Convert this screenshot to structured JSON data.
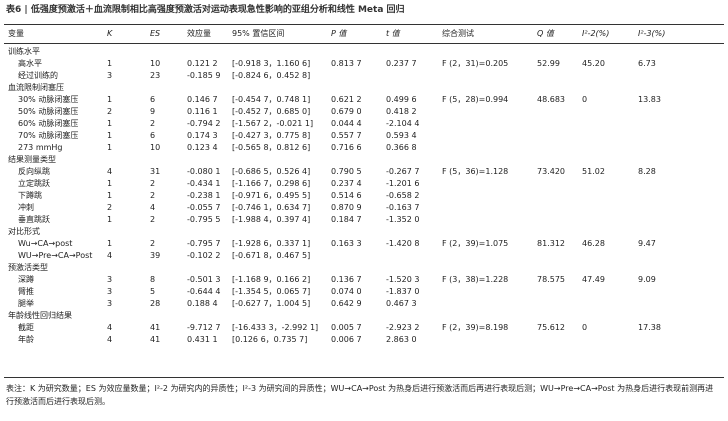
{
  "title": "表6 | 低强度预激活＋血流限制相比高强度预激活对运动表现急性影响的亚组分析和线性 Meta 回归",
  "table": {
    "header": [
      "变量",
      "K",
      "ES",
      "效应量",
      "95% 置信区间",
      "P 值",
      "t 值",
      "综合测试",
      "Q 值",
      "I²-2(%)",
      "I²-3(%)"
    ],
    "rows": [
      [
        "训练水平"
      ],
      [
        "高水平",
        "1",
        "10",
        "0.121 2",
        "[-0.918 3，1.160 6]",
        "0.813 7",
        "0.237 7",
        "F (2，31)=0.205",
        "52.99",
        "45.20",
        "6.73"
      ],
      [
        "经过训练的",
        "3",
        "23",
        "-0.185 9",
        "[-0.824 6，0.452 8]"
      ],
      [
        "血流限制闭塞压"
      ],
      [
        "30% 动脉闭塞压",
        "1",
        "6",
        "0.146 7",
        "[-0.454 7，0.748 1]",
        "0.621 2",
        "0.499 6",
        "F (5，28)=0.994",
        "48.683",
        "0",
        "13.83"
      ],
      [
        "50% 动脉闭塞压",
        "2",
        "9",
        "0.116 1",
        "[-0.452 7，0.685 0]",
        "0.679 0",
        "0.418 2"
      ],
      [
        "60% 动脉闭塞压",
        "1",
        "2",
        "-0.794 2",
        "[-1.567 2，-0.021 1]",
        "0.044 4",
        "-2.104 4"
      ],
      [
        "70% 动脉闭塞压",
        "1",
        "6",
        "0.174 3",
        "[-0.427 3，0.775 8]",
        "0.557 7",
        "0.593 4"
      ],
      [
        "273 mmHg",
        "1",
        "10",
        "0.123 4",
        "[-0.565 8，0.812 6]",
        "0.716 6",
        "0.366 8"
      ],
      [
        "结果测量类型"
      ],
      [
        "反向纵跳",
        "4",
        "31",
        "-0.080 1",
        "[-0.686 5，0.526 4]",
        "0.790 5",
        "-0.267 7",
        "F (5，36)=1.128",
        "73.420",
        "51.02",
        "8.28"
      ],
      [
        "立定跳跃",
        "1",
        "2",
        "-0.434 1",
        "[-1.166 7，0.298 6]",
        "0.237 4",
        "-1.201 6"
      ],
      [
        "下蹲跳",
        "1",
        "2",
        "-0.238 1",
        "[-0.971 6，0.495 5]",
        "0.514 6",
        "-0.658 2"
      ],
      [
        "冲刺",
        "2",
        "4",
        "-0.055 7",
        "[-0.746 1，0.634 7]",
        "0.870 9",
        "-0.163 7"
      ],
      [
        "垂直跳跃",
        "1",
        "2",
        "-0.795 5",
        "[-1.988 4，0.397 4]",
        "0.184 7",
        "-1.352 0"
      ],
      [
        "对比形式"
      ],
      [
        "Wu→CA→post",
        "1",
        "2",
        "-0.795 7",
        "[-1.928 6，0.337 1]",
        "0.163 3",
        "-1.420 8",
        "F (2，39)=1.075",
        "81.312",
        "46.28",
        "9.47"
      ],
      [
        "WU→Pre→CA→Post",
        "4",
        "39",
        "-0.102 2",
        "[-0.671 8，0.467 5]"
      ],
      [
        "预激活类型"
      ],
      [
        "深蹲",
        "3",
        "8",
        "-0.501 3",
        "[-1.168 9，0.166 2]",
        "0.136 7",
        "-1.520 3",
        "F (3，38)=1.228",
        "78.575",
        "47.49",
        "9.09"
      ],
      [
        "臂推",
        "3",
        "5",
        "-0.644 4",
        "[-1.354 5，0.065 7]",
        "0.074 0",
        "-1.837 0"
      ],
      [
        "腿举",
        "3",
        "28",
        "0.188 4",
        "[-0.627 7，1.004 5]",
        "0.642 9",
        "0.467 3"
      ],
      [
        "年龄线性回归结果"
      ],
      [
        "截距",
        "4",
        "41",
        "-9.712 7",
        "[-16.433 3，-2.992 1]",
        "0.005 7",
        "-2.923 2",
        "F (2，39)=8.198",
        "75.612",
        "0",
        "17.38"
      ],
      [
        "年龄",
        "4",
        "41",
        "0.431 1",
        "[0.126 6，0.735 7]",
        "0.006 7",
        "2.863 0"
      ]
    ]
  },
  "note": "表注：K 为研究数量；ES 为效应量数量；I²-2 为研究内的异质性；I²-3 为研究间的异质性；WU→CA→Post 为热身后进行预激活而后再进行表现后测；WU→Pre→CA→Post 为热身后进行表现前测再进行预激活而后进行表现后测。"
}
